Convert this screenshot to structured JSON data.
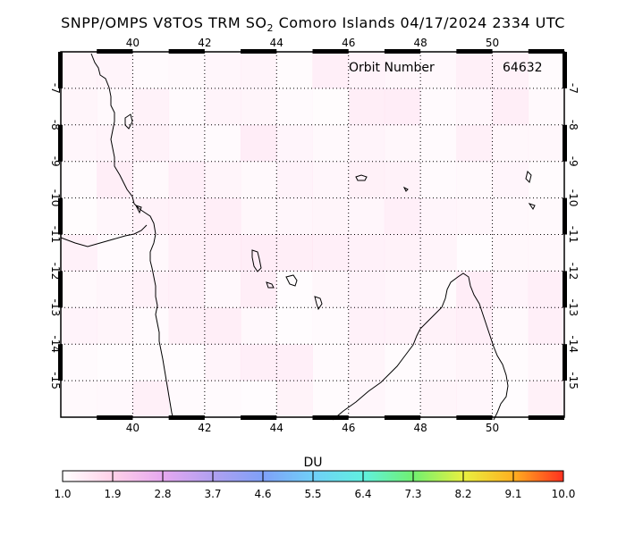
{
  "title": {
    "prefix": "SNPP/OMPS V8TOS TRM SO",
    "sub": "2",
    "suffix": " Comoro Islands 04/17/2024 2334 UTC"
  },
  "orbit": {
    "label": "Orbit Number",
    "value": "64632"
  },
  "map": {
    "lon_range": [
      38,
      52
    ],
    "lat_range": [
      -16,
      -6
    ],
    "lon_ticks": [
      40,
      42,
      44,
      46,
      48,
      50
    ],
    "lat_ticks": [
      -7,
      -8,
      -9,
      -10,
      -11,
      -12,
      -13,
      -14,
      -15
    ],
    "lon_tick_labels": [
      "40",
      "42",
      "44",
      "46",
      "48",
      "50"
    ],
    "lat_tick_labels": [
      "-7",
      "-8",
      "-9",
      "-10",
      "-11",
      "-12",
      "-13",
      "-14",
      "-15"
    ],
    "grid": "dotted"
  },
  "colorbar": {
    "title": "DU",
    "min": 1.0,
    "max": 10.0,
    "tick_labels": [
      "1.0",
      "1.9",
      "2.8",
      "3.7",
      "4.6",
      "5.5",
      "6.4",
      "7.3",
      "8.2",
      "9.1",
      "10.0"
    ],
    "colors": [
      "#ffffff",
      "#ffd0e8",
      "#e6a8f0",
      "#b0a0f0",
      "#7fa0f8",
      "#70d0f8",
      "#60f0e0",
      "#70f070",
      "#e8f040",
      "#ffb020",
      "#ff3020"
    ]
  }
}
